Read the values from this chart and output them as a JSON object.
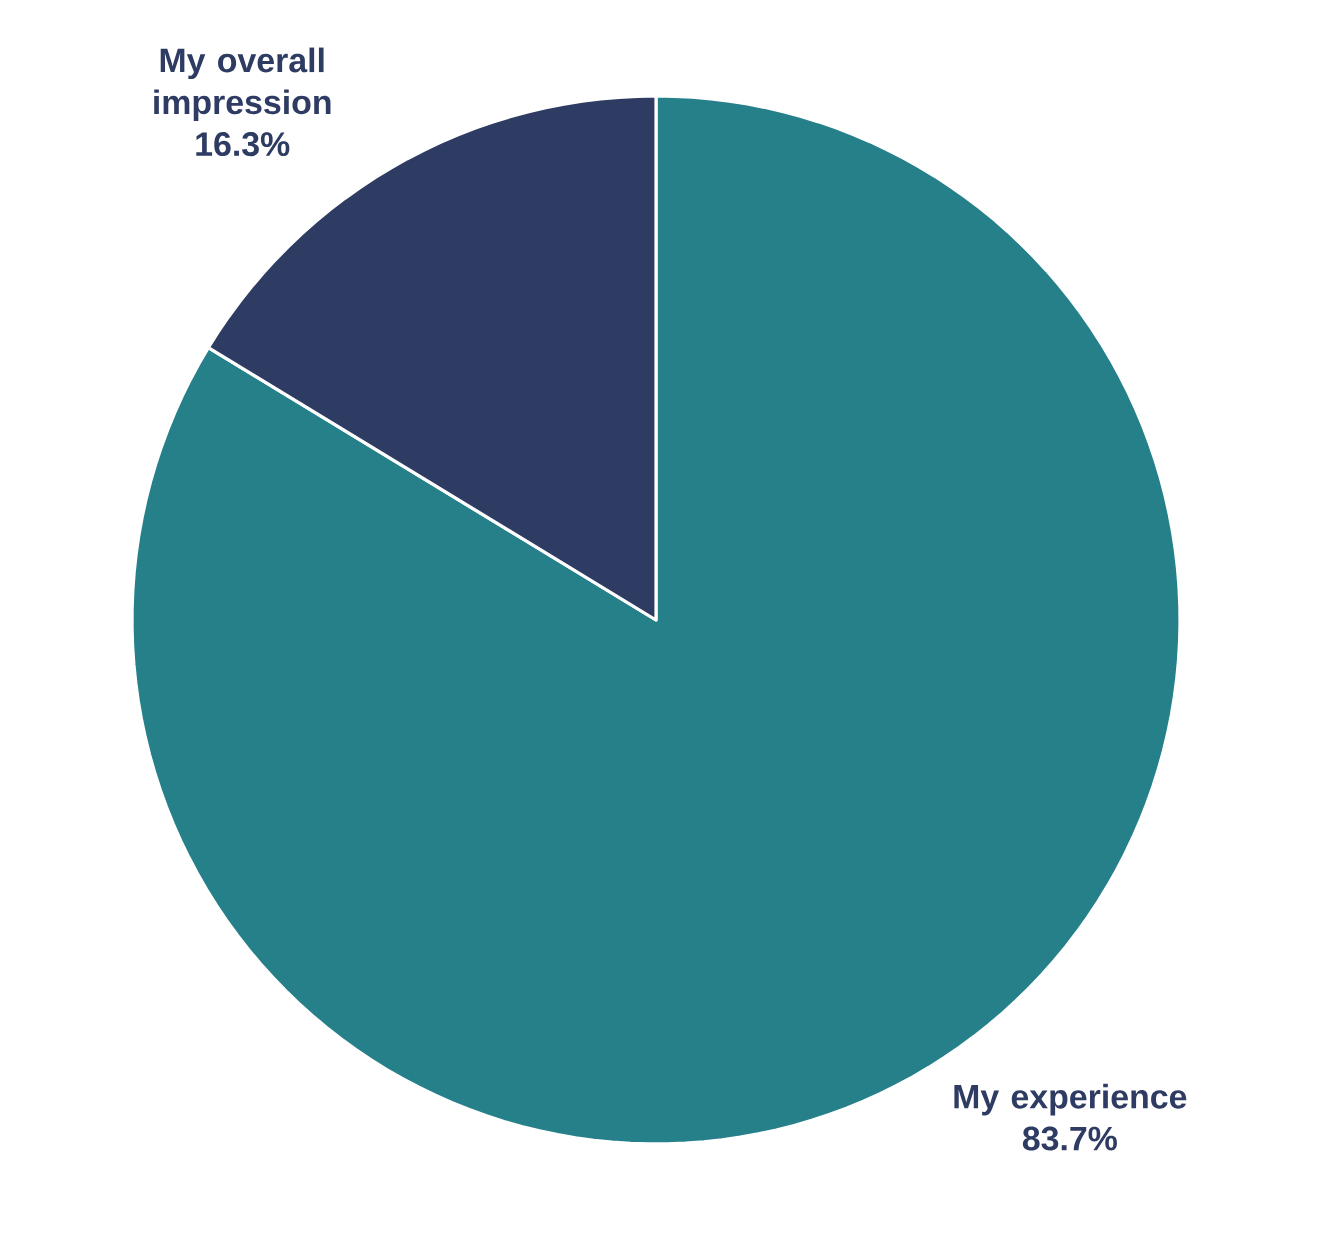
{
  "chart_data": {
    "type": "pie",
    "categories": [
      "My experience",
      "My overall impression"
    ],
    "values": [
      83.7,
      16.3
    ],
    "value_labels": [
      "83.7%",
      "16.3%"
    ],
    "colors": [
      "#26808a",
      "#2e3b63"
    ]
  }
}
